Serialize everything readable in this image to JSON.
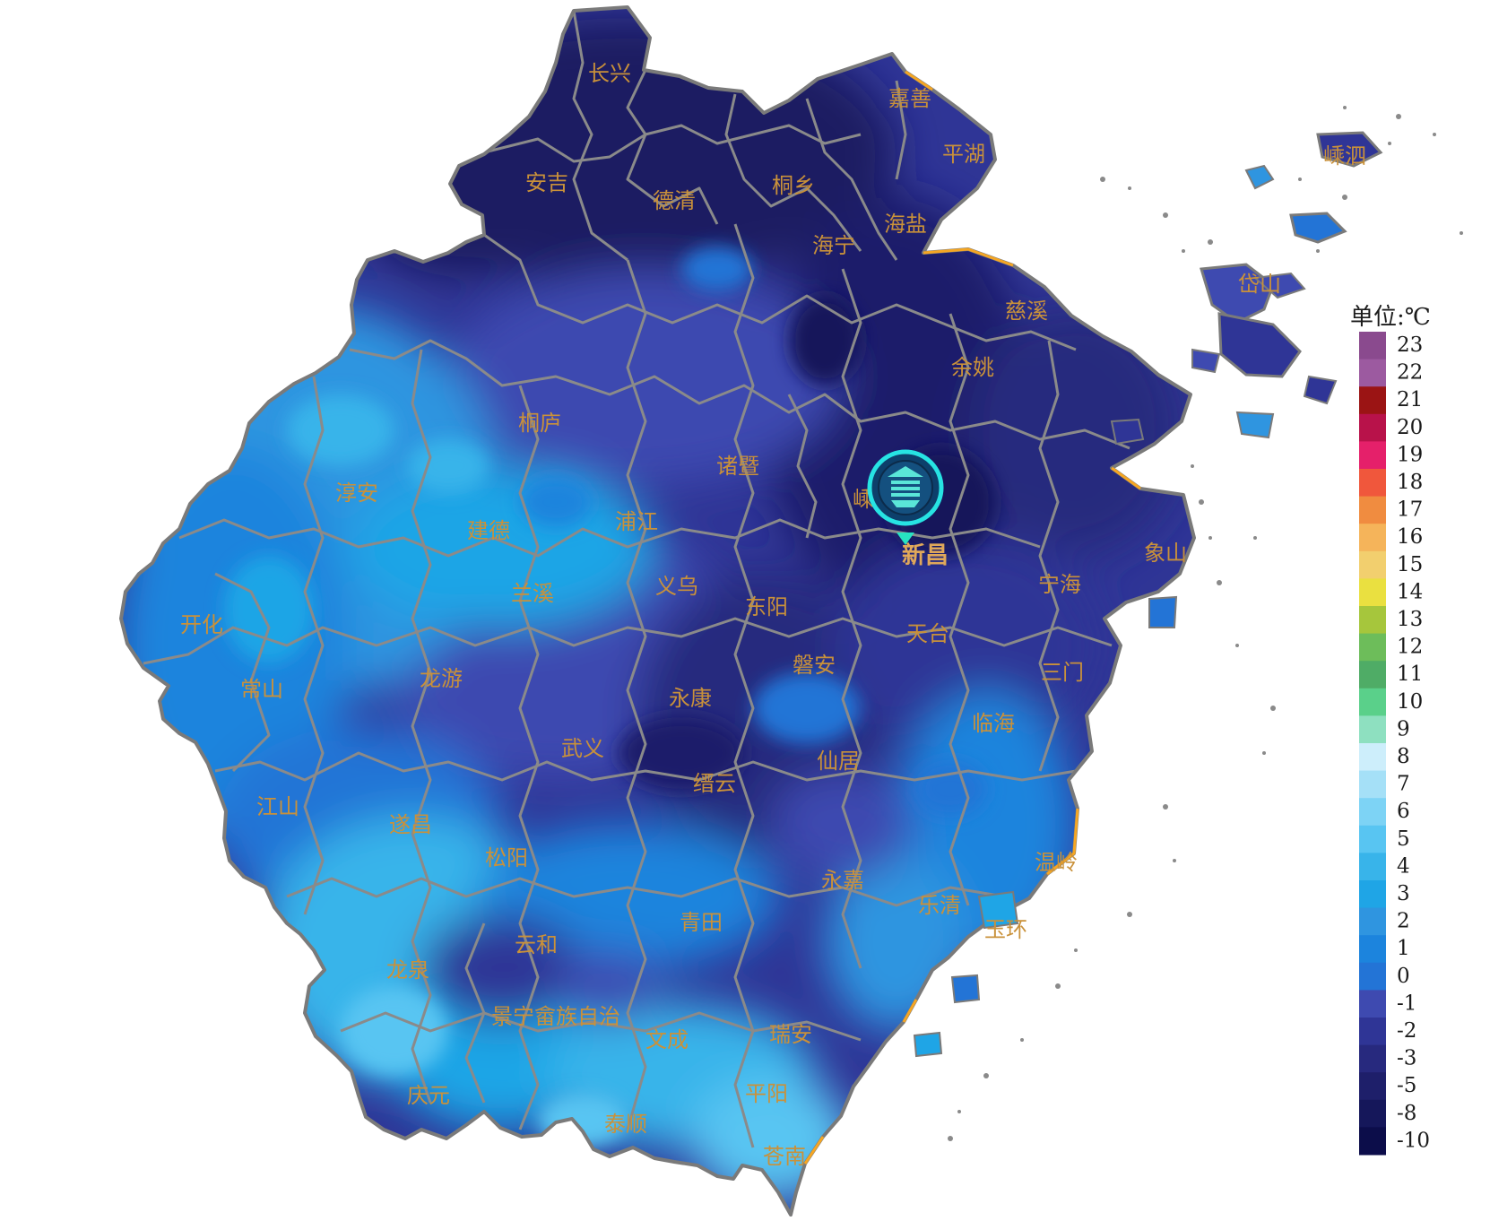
{
  "legend": {
    "title": "单位:℃",
    "labels": [
      "23",
      "22",
      "21",
      "20",
      "19",
      "18",
      "17",
      "16",
      "15",
      "14",
      "13",
      "12",
      "11",
      "10",
      "9",
      "8",
      "7",
      "6",
      "5",
      "4",
      "3",
      "2",
      "1",
      "0",
      "-1",
      "-2",
      "-3",
      "-5",
      "-8",
      "-10"
    ],
    "colors": [
      "#8a4a8e",
      "#9c5aa0",
      "#9b1414",
      "#b8124a",
      "#e5206a",
      "#f0573c",
      "#f08c40",
      "#f5b45a",
      "#f2cf6e",
      "#eae040",
      "#a6c63c",
      "#6dbd5a",
      "#4fac66",
      "#5ad08a",
      "#8ee0c0",
      "#cdeefb",
      "#a5e0f7",
      "#7dd3f5",
      "#58c5f2",
      "#38b4ea",
      "#1fa5e6",
      "#2f95e0",
      "#1c84dd",
      "#2374d6",
      "#3e4ab0",
      "#2f3596",
      "#27297e",
      "#1e1f6a",
      "#15175a",
      "#0c0d4a"
    ]
  },
  "station": {
    "name": "新昌",
    "icon": "meteorological-station-icon"
  },
  "cities": [
    {
      "id": "changxing",
      "name": "长兴"
    },
    {
      "id": "jiashan",
      "name": "嘉善"
    },
    {
      "id": "pinghu",
      "name": "平湖"
    },
    {
      "id": "anji",
      "name": "安吉"
    },
    {
      "id": "deqing",
      "name": "德清"
    },
    {
      "id": "tongxiang",
      "name": "桐乡"
    },
    {
      "id": "haiyan",
      "name": "海盐"
    },
    {
      "id": "haining",
      "name": "海宁"
    },
    {
      "id": "shengsi",
      "name": "嵊泗"
    },
    {
      "id": "daishan",
      "name": "岱山"
    },
    {
      "id": "cixi",
      "name": "慈溪"
    },
    {
      "id": "yuyao",
      "name": "余姚"
    },
    {
      "id": "tonglu",
      "name": "桐庐"
    },
    {
      "id": "zhuji",
      "name": "诸暨"
    },
    {
      "id": "shengzhou",
      "name": "嵊州"
    },
    {
      "id": "chunan",
      "name": "淳安"
    },
    {
      "id": "jiande",
      "name": "建德"
    },
    {
      "id": "pujiang",
      "name": "浦江"
    },
    {
      "id": "xiangshan",
      "name": "象山"
    },
    {
      "id": "ninghai",
      "name": "宁海"
    },
    {
      "id": "lanxi",
      "name": "兰溪"
    },
    {
      "id": "yiwu",
      "name": "义乌"
    },
    {
      "id": "dongyang",
      "name": "东阳"
    },
    {
      "id": "kaihua",
      "name": "开化"
    },
    {
      "id": "tiantai",
      "name": "天台"
    },
    {
      "id": "panan",
      "name": "磐安"
    },
    {
      "id": "changshan",
      "name": "常山"
    },
    {
      "id": "longyou",
      "name": "龙游"
    },
    {
      "id": "sanmen",
      "name": "三门"
    },
    {
      "id": "yongkang",
      "name": "永康"
    },
    {
      "id": "linhai",
      "name": "临海"
    },
    {
      "id": "wuyi",
      "name": "武义"
    },
    {
      "id": "xianju",
      "name": "仙居"
    },
    {
      "id": "jinyun",
      "name": "缙云"
    },
    {
      "id": "jiangshan",
      "name": "江山"
    },
    {
      "id": "suichang",
      "name": "遂昌"
    },
    {
      "id": "wenling",
      "name": "温岭"
    },
    {
      "id": "songyang",
      "name": "松阳"
    },
    {
      "id": "yongjia",
      "name": "永嘉"
    },
    {
      "id": "yueqing",
      "name": "乐清"
    },
    {
      "id": "qingtian",
      "name": "青田"
    },
    {
      "id": "yuhuan",
      "name": "玉环"
    },
    {
      "id": "yunhe",
      "name": "云和"
    },
    {
      "id": "longquan",
      "name": "龙泉"
    },
    {
      "id": "jingning",
      "name": "景宁畲族自治"
    },
    {
      "id": "wencheng",
      "name": "文成"
    },
    {
      "id": "ruian",
      "name": "瑞安"
    },
    {
      "id": "qingyuan",
      "name": "庆元"
    },
    {
      "id": "pingyang",
      "name": "平阳"
    },
    {
      "id": "taishun",
      "name": "泰顺"
    },
    {
      "id": "cangnan",
      "name": "苍南"
    }
  ]
}
